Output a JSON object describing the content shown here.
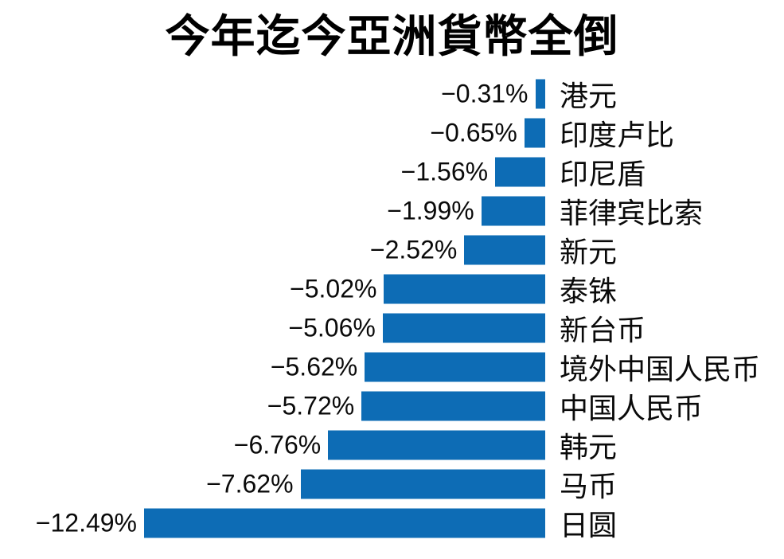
{
  "chart_data": {
    "type": "bar",
    "orientation": "horizontal",
    "title": "今年迄今亞洲貨幣全倒",
    "categories": [
      "港元",
      "印度卢比",
      "印尼盾",
      "菲律宾比索",
      "新元",
      "泰铢",
      "新台币",
      "境外中国人民币",
      "中国人民币",
      "韩元",
      "马币",
      "日圆"
    ],
    "values": [
      -0.31,
      -0.65,
      -1.56,
      -1.99,
      -2.52,
      -5.02,
      -5.06,
      -5.62,
      -5.72,
      -6.76,
      -7.62,
      -12.49
    ],
    "value_labels": [
      "−0.31%",
      "−0.65%",
      "−1.56%",
      "−1.99%",
      "−2.52%",
      "−5.02%",
      "−5.06%",
      "−5.62%",
      "−5.72%",
      "−6.76%",
      "−7.62%",
      "−12.49%"
    ],
    "value_suffix": "%",
    "xlim": [
      -13,
      0
    ],
    "bar_color": "#0d6cb5",
    "grid": false,
    "legend_position": "none",
    "bars_anchor": "right",
    "value_label_position": "left-of-bar",
    "category_label_position": "right-of-bar"
  }
}
